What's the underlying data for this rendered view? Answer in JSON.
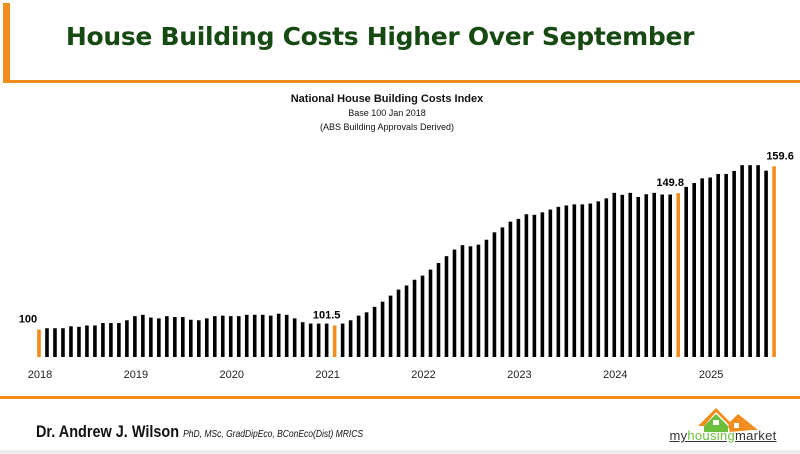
{
  "header": {
    "title": "House Building Costs Higher Over September",
    "accent": "#f28c1c",
    "title_color": "#174a12"
  },
  "footer": {
    "author": "Dr. Andrew J. Wilson",
    "credentials": "PhD, MSc, GradDipEco, BConEco(Dist) MRICS",
    "logo": {
      "part1": "my",
      "part2": "housing",
      "part3": "market"
    }
  },
  "chart_data": {
    "type": "bar",
    "title": "National House Building Costs Index",
    "subtitle": "Base 100 Jan 2018",
    "subtitle2": "(ABS Building Approvals Derived)",
    "xlabel": "",
    "ylabel": "",
    "x_tick_labels": [
      "2018",
      "2019",
      "2020",
      "2021",
      "2022",
      "2023",
      "2024",
      "2025"
    ],
    "x_start": "2018-01",
    "frequency": "monthly",
    "ylim": [
      90,
      162
    ],
    "grid": false,
    "bar_color": "#000000",
    "highlight_color": "#f28c1c",
    "values": [
      100,
      100.5,
      100.5,
      100.5,
      101.2,
      101.0,
      101.5,
      101.5,
      102.4,
      102.4,
      102.4,
      103.4,
      104.9,
      105.4,
      104.4,
      104.1,
      104.9,
      104.6,
      104.6,
      103.6,
      103.4,
      104.1,
      104.9,
      105.1,
      104.9,
      104.9,
      105.4,
      105.4,
      105.4,
      105.1,
      105.8,
      105.4,
      104.1,
      102.7,
      102.2,
      102.2,
      102.2,
      101.5,
      102.2,
      103.4,
      105.1,
      106.3,
      108.3,
      110.2,
      112.4,
      114.6,
      116.1,
      118.2,
      119.7,
      121.9,
      124.3,
      126.8,
      129.2,
      130.8,
      130.4,
      131.0,
      132.8,
      135.5,
      137.3,
      139.4,
      140.4,
      142.1,
      141.9,
      142.8,
      143.8,
      144.8,
      145.3,
      145.7,
      145.7,
      146.0,
      146.8,
      147.9,
      149.9,
      149.2,
      149.9,
      148.4,
      149.4,
      149.9,
      149.3,
      149.3,
      149.8,
      152.1,
      153.5,
      155.2,
      155.5,
      156.8,
      156.8,
      157.9,
      160.0,
      160.0,
      160.0,
      158.0,
      159.6
    ],
    "highlighted": [
      {
        "date": "2018-01",
        "label": "100"
      },
      {
        "date": "2021-02",
        "label": "101.5"
      },
      {
        "date": "2024-09",
        "label": "149.8"
      },
      {
        "date": "2025-09",
        "label": "159.6"
      }
    ]
  }
}
